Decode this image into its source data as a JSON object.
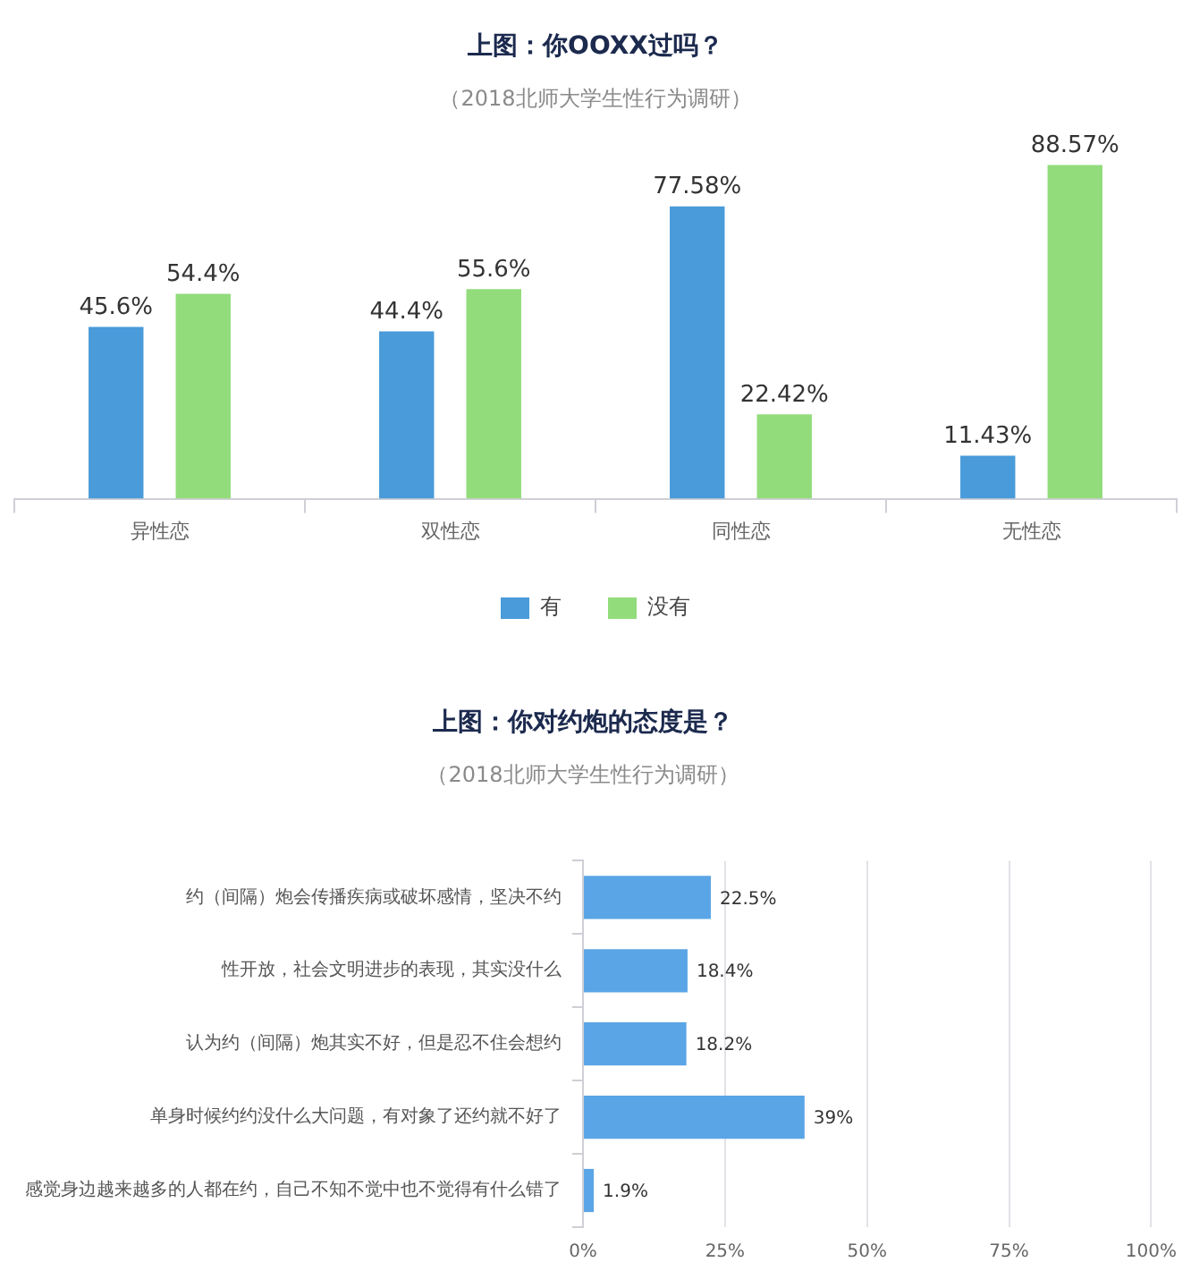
{
  "chart_data": [
    {
      "type": "bar",
      "title": "上图：你OOXX过吗？",
      "subtitle": "（2018北师大学生性行为调研）",
      "categories": [
        "异性恋",
        "双性恋",
        "同性恋",
        "无性恋"
      ],
      "series": [
        {
          "name": "有",
          "color": "#4a9bd9",
          "values": [
            45.6,
            44.4,
            77.58,
            11.43
          ],
          "value_labels": [
            "45.6%",
            "44.4%",
            "77.58%",
            "11.43%"
          ]
        },
        {
          "name": "没有",
          "color": "#92dc7c",
          "values": [
            54.4,
            55.6,
            22.42,
            88.57
          ],
          "value_labels": [
            "54.4%",
            "55.6%",
            "22.42%",
            "88.57%"
          ]
        }
      ],
      "legend": "bottom"
    },
    {
      "type": "bar",
      "orientation": "horizontal",
      "title": "上图：你对约炮的态度是？",
      "subtitle": "（2018北师大学生性行为调研）",
      "categories": [
        "约（间隔）炮会传播疾病或破坏感情，坚决不约",
        "性开放，社会文明进步的表现，其实没什么",
        "认为约（间隔）炮其实不好，但是忍不住会想约",
        "单身时候约约没什么大问题，有对象了还约就不好了",
        "感觉身边越来越多的人都在约，自己不知不觉中也不觉得有什么错了"
      ],
      "values": [
        22.5,
        18.4,
        18.2,
        39,
        1.9
      ],
      "value_labels": [
        "22.5%",
        "18.4%",
        "18.2%",
        "39%",
        "1.9%"
      ],
      "color": "#5aa5e6",
      "xlim": [
        0,
        100
      ],
      "xticks": [
        {
          "value": 0,
          "label": "0%"
        },
        {
          "value": 25,
          "label": "25%"
        },
        {
          "value": 50,
          "label": "50%"
        },
        {
          "value": 75,
          "label": "75%"
        },
        {
          "value": 100,
          "label": "100%"
        }
      ],
      "grid": "x"
    }
  ]
}
